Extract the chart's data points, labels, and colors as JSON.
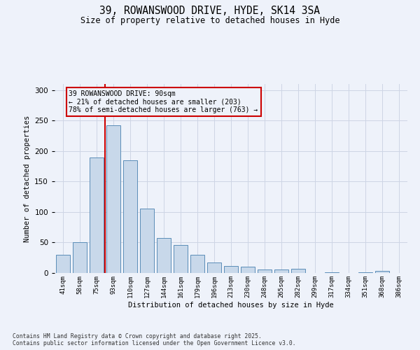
{
  "title_line1": "39, ROWANSWOOD DRIVE, HYDE, SK14 3SA",
  "title_line2": "Size of property relative to detached houses in Hyde",
  "xlabel": "Distribution of detached houses by size in Hyde",
  "ylabel": "Number of detached properties",
  "categories": [
    "41sqm",
    "58sqm",
    "75sqm",
    "93sqm",
    "110sqm",
    "127sqm",
    "144sqm",
    "161sqm",
    "179sqm",
    "196sqm",
    "213sqm",
    "230sqm",
    "248sqm",
    "265sqm",
    "282sqm",
    "299sqm",
    "317sqm",
    "334sqm",
    "351sqm",
    "368sqm",
    "386sqm"
  ],
  "values": [
    30,
    50,
    190,
    242,
    185,
    106,
    57,
    46,
    30,
    17,
    11,
    10,
    6,
    6,
    7,
    0,
    1,
    0,
    1,
    3,
    0
  ],
  "bar_color": "#c8d8ea",
  "bar_edge_color": "#5b8db8",
  "vline_color": "#cc0000",
  "vline_x": 2.5,
  "annotation_text": "39 ROWANSWOOD DRIVE: 90sqm\n← 21% of detached houses are smaller (203)\n78% of semi-detached houses are larger (763) →",
  "annotation_box_color": "#cc0000",
  "background_color": "#eef2fa",
  "grid_color": "#cdd5e5",
  "footer_text": "Contains HM Land Registry data © Crown copyright and database right 2025.\nContains public sector information licensed under the Open Government Licence v3.0.",
  "ylim": [
    0,
    310
  ],
  "yticks": [
    0,
    50,
    100,
    150,
    200,
    250,
    300
  ]
}
